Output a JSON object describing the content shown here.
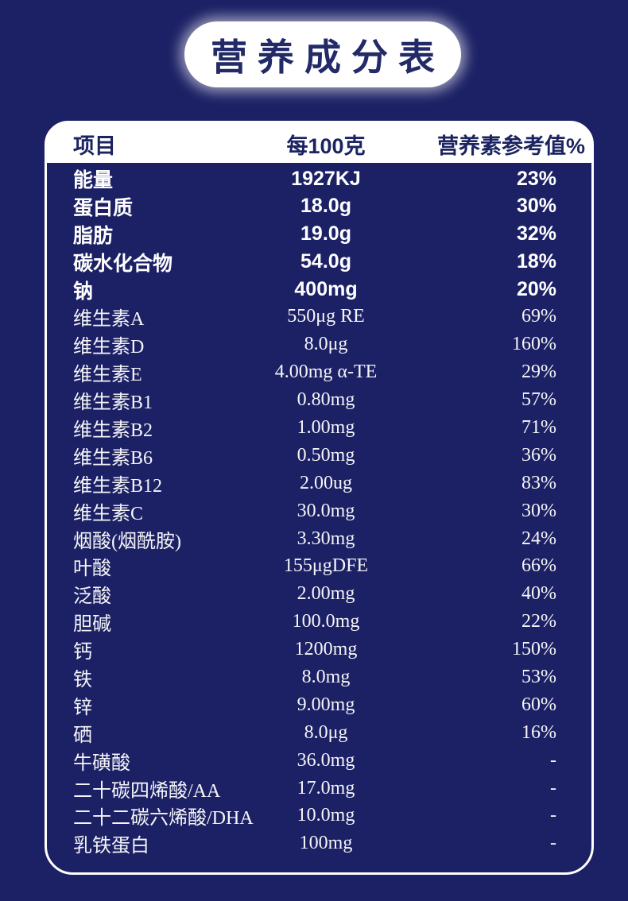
{
  "title": "营养成分表",
  "colors": {
    "background": "#1c2165",
    "banner_bg": "#ffffff",
    "banner_text": "#222a67",
    "header_bg": "#ffffff",
    "header_text": "#1b2360",
    "row_text": "#ffffff",
    "card_border": "#ffffff"
  },
  "table": {
    "columns": [
      "项目",
      "每100克",
      "营养素参考值%"
    ],
    "macro_rows": [
      {
        "name": "能量",
        "value": "1927KJ",
        "rv": "23%"
      },
      {
        "name": "蛋白质",
        "value": "18.0g",
        "rv": "30%"
      },
      {
        "name": "脂肪",
        "value": "19.0g",
        "rv": "32%"
      },
      {
        "name": "碳水化合物",
        "value": "54.0g",
        "rv": "18%"
      },
      {
        "name": "钠",
        "value": "400mg",
        "rv": "20%"
      }
    ],
    "micro_rows": [
      {
        "name": "维生素A",
        "value": "550μg RE",
        "rv": "69%"
      },
      {
        "name": "维生素D",
        "value": "8.0μg",
        "rv": "160%"
      },
      {
        "name": "维生素E",
        "value": "4.00mg α-TE",
        "rv": "29%"
      },
      {
        "name": "维生素B1",
        "value": "0.80mg",
        "rv": "57%"
      },
      {
        "name": "维生素B2",
        "value": "1.00mg",
        "rv": "71%"
      },
      {
        "name": "维生素B6",
        "value": "0.50mg",
        "rv": "36%"
      },
      {
        "name": "维生素B12",
        "value": "2.00ug",
        "rv": "83%"
      },
      {
        "name": "维生素C",
        "value": "30.0mg",
        "rv": "30%"
      },
      {
        "name": "烟酸(烟酰胺)",
        "value": "3.30mg",
        "rv": "24%"
      },
      {
        "name": "叶酸",
        "value": "155μgDFE",
        "rv": "66%"
      },
      {
        "name": "泛酸",
        "value": "2.00mg",
        "rv": "40%"
      },
      {
        "name": "胆碱",
        "value": "100.0mg",
        "rv": "22%"
      },
      {
        "name": "钙",
        "value": "1200mg",
        "rv": "150%"
      },
      {
        "name": "铁",
        "value": "8.0mg",
        "rv": "53%"
      },
      {
        "name": "锌",
        "value": "9.00mg",
        "rv": "60%"
      },
      {
        "name": "硒",
        "value": "8.0μg",
        "rv": "16%"
      },
      {
        "name": "牛磺酸",
        "value": "36.0mg",
        "rv": "-"
      },
      {
        "name": "二十碳四烯酸/AA",
        "value": "17.0mg",
        "rv": "-"
      },
      {
        "name": "二十二碳六烯酸/DHA",
        "value": "10.0mg",
        "rv": "-"
      },
      {
        "name": "乳铁蛋白",
        "value": "100mg",
        "rv": "-"
      }
    ]
  }
}
